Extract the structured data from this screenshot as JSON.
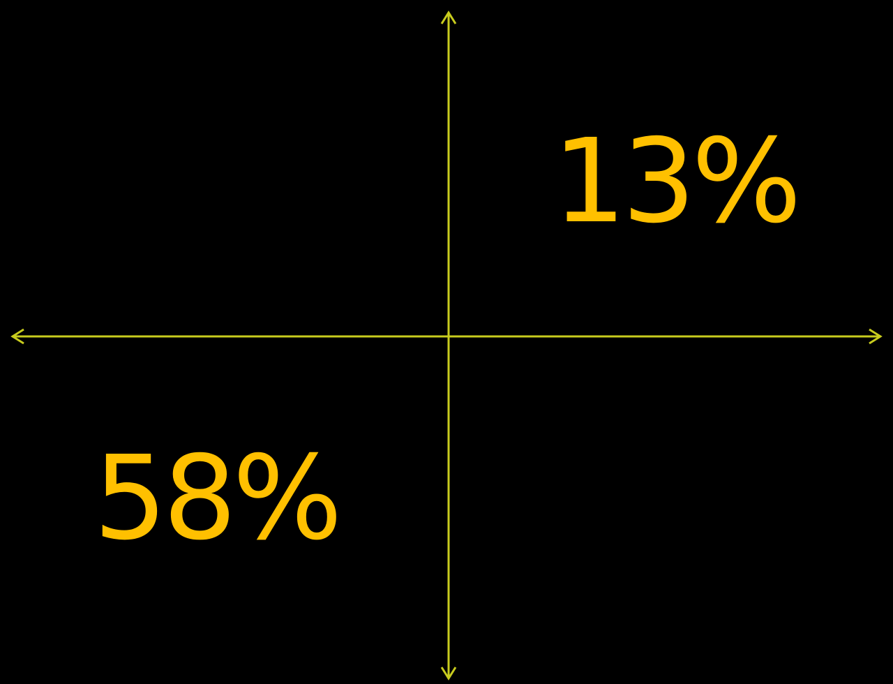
{
  "quadrants": {
    "upper_right": "13%",
    "lower_left": "58%"
  },
  "colors": {
    "background": "#000000",
    "axis": "#C8CC1E",
    "label": "#FFC000"
  }
}
